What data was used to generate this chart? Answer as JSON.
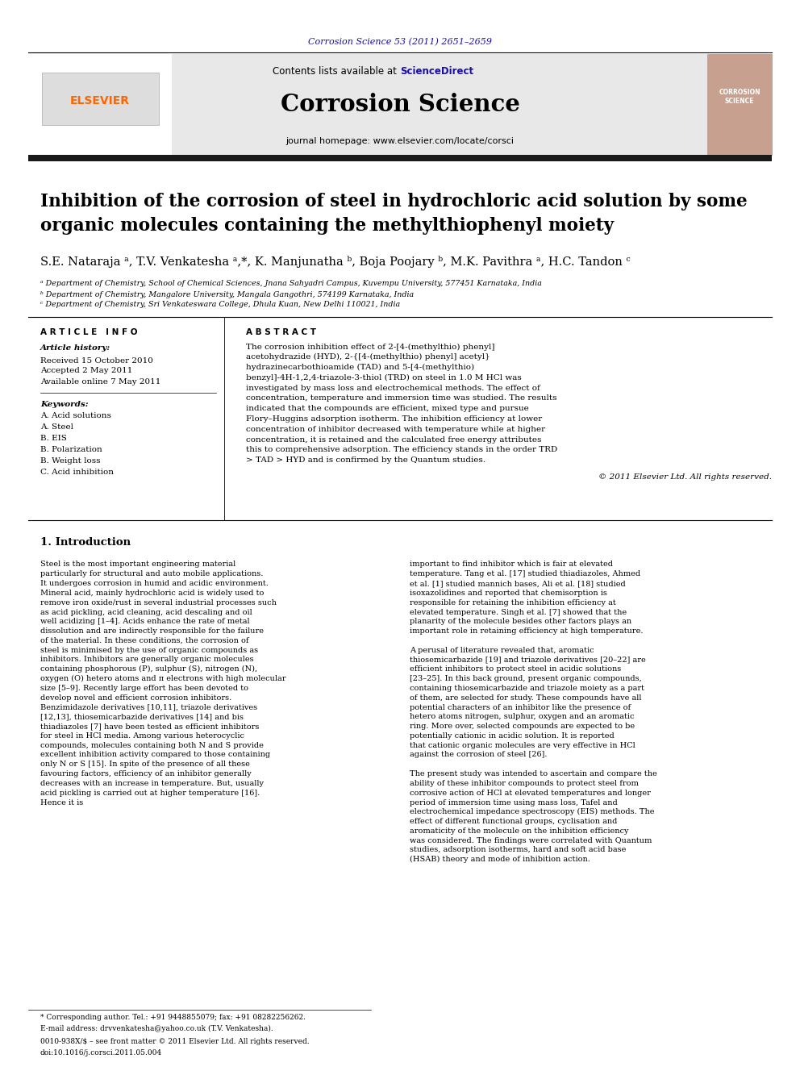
{
  "page_bg": "#ffffff",
  "top_citation": "Corrosion Science 53 (2011) 2651–2659",
  "top_citation_color": "#1a0dab",
  "journal_name": "Corrosion Science",
  "journal_homepage": "journal homepage: www.elsevier.com/locate/corsci",
  "sciencedirect_color": "#1a0dab",
  "header_bg": "#e8e8e8",
  "black_bar_color": "#1a1a1a",
  "elsevier_color": "#FF6600",
  "title": "Inhibition of the corrosion of steel in hydrochloric acid solution by some\norganic molecules containing the methylthiophenyl moiety",
  "authors": "S.E. Nataraja ᵃ, T.V. Venkatesha ᵃ,*, K. Manjunatha ᵇ, Boja Poojary ᵇ, M.K. Pavithra ᵃ, H.C. Tandon ᶜ",
  "affil_a": "ᵃ Department of Chemistry, School of Chemical Sciences, Jnana Sahyadri Campus, Kuvempu University, 577451 Karnataka, India",
  "affil_b": "ᵇ Department of Chemistry, Mangalore University, Mangala Gangothri, 574199 Karnataka, India",
  "affil_c": "ᶜ Department of Chemistry, Sri Venkateswara College, Dhula Kuan, New Delhi 110021, India",
  "article_info_header": "A R T I C L E   I N F O",
  "abstract_header": "A B S T R A C T",
  "article_history_label": "Article history:",
  "received": "Received 15 October 2010",
  "accepted": "Accepted 2 May 2011",
  "available": "Available online 7 May 2011",
  "keywords_label": "Keywords:",
  "keywords": [
    "A. Acid solutions",
    "A. Steel",
    "B. EIS",
    "B. Polarization",
    "B. Weight loss",
    "C. Acid inhibition"
  ],
  "abstract_text": "The corrosion inhibition effect of 2-[4-(methylthio) phenyl] acetohydrazide (HYD), 2-{[4-(methylthio) phenyl] acetyl} hydrazinecarbothioamide (TAD) and 5-[4-(methylthio) benzyl]-4H-1,2,4-triazole-3-thiol (TRD) on steel in 1.0 M HCl was investigated by mass loss and electrochemical methods. The effect of concentration, temperature and immersion time was studied. The results indicated that the compounds are efficient, mixed type and pursue Flory–Huggins adsorption isotherm. The inhibition efficiency at lower concentration of inhibitor decreased with temperature while at higher concentration, it is retained and the calculated free energy attributes this to comprehensive adsorption. The efficiency stands in the order TRD > TAD > HYD and is confirmed by the Quantum studies.",
  "copyright": "© 2011 Elsevier Ltd. All rights reserved.",
  "section1_header": "1. Introduction",
  "intro_col1": "Steel is the most important engineering material particularly for structural and auto mobile applications. It undergoes corrosion in humid and acidic environment. Mineral acid, mainly hydrochloric acid is widely used to remove iron oxide/rust in several industrial processes such as acid pickling, acid cleaning, acid descaling and oil well acidizing [1–4]. Acids enhance the rate of metal dissolution and are indirectly responsible for the failure of the material. In these conditions, the corrosion of steel is minimised by the use of organic compounds as inhibitors. Inhibitors are generally organic molecules containing phosphorous (P), sulphur (S), nitrogen (N), oxygen (O) hetero atoms and π electrons with high molecular size [5–9]. Recently large effort has been devoted to develop novel and efficient corrosion inhibitors. Benzimidazole derivatives [10,11], triazole derivatives [12,13], thiosemicarbazide derivatives [14] and bis thiadiazoles [7] have been tested as efficient inhibitors for steel in HCl media. Among various heterocyclic compounds, molecules containing both N and S provide excellent inhibition activity compared to those containing only N or S [15]. In spite of the presence of all these favouring factors, efficiency of an inhibitor generally decreases with an increase in temperature. But, usually acid pickling is carried out at higher temperature [16]. Hence it is",
  "intro_col2": "important to find inhibitor which is fair at elevated temperature. Tang et al. [17] studied thiadiazoles, Ahmed et al. [1] studied mannich bases, Ali et al. [18] studied isoxazolidines and reported that chemisorption is responsible for retaining the inhibition efficiency at elevated temperature. Singh et al. [7] showed that the planarity of the molecule besides other factors plays an important role in retaining efficiency at high temperature.\n    A perusal of literature revealed that, aromatic thiosemicarbazide [19] and triazole derivatives [20–22] are efficient inhibitors to protect steel in acidic solutions [23–25]. In this back ground, present organic compounds, containing thiosemicarbazide and triazole moiety as a part of them, are selected for study. These compounds have all potential characters of an inhibitor like the presence of hetero atoms nitrogen, sulphur, oxygen and an aromatic ring. More over, selected compounds are expected to be potentially cationic in acidic solution. It is reported that cationic organic molecules are very effective in HCl against the corrosion of steel [26].\n    The present study was intended to ascertain and compare the ability of these inhibitor compounds to protect steel from corrosive action of HCl at elevated temperatures and longer period of immersion time using mass loss, Tafel and electrochemical impedance spectroscopy (EIS) methods. The effect of different functional groups, cyclisation and aromaticity of the molecule on the inhibition efficiency was considered. The findings were correlated with Quantum studies, adsorption isotherms, hard and soft acid base (HSAB) theory and mode of inhibition action.",
  "footnote_star": "* Corresponding author. Tel.: +91 9448855079; fax: +91 08282256262.",
  "footnote_email": "E-mail address: drvvenkatesha@yahoo.co.uk (T.V. Venkatesha).",
  "footnote_issn": "0010-938X/$ – see front matter © 2011 Elsevier Ltd. All rights reserved.",
  "footnote_doi": "doi:10.1016/j.corsci.2011.05.004"
}
